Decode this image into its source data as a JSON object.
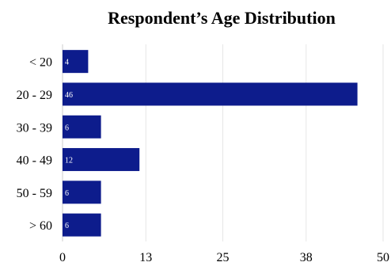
{
  "chart_data": {
    "type": "bar",
    "orientation": "horizontal",
    "title": "Respondent’s Age Distribution",
    "categories": [
      "< 20",
      "20 - 29",
      "30 - 39",
      "40 - 49",
      "50 - 59",
      "> 60"
    ],
    "values": [
      4,
      46,
      6,
      12,
      6,
      6
    ],
    "data_labels": [
      "4",
      "46",
      "6",
      "12",
      "6",
      "6"
    ],
    "x_ticks": [
      0,
      13,
      25,
      38,
      50
    ],
    "x_tick_labels": [
      "0",
      "13",
      "25",
      "38",
      "50"
    ],
    "xlim": [
      0,
      50
    ],
    "xlabel": "",
    "ylabel": "",
    "grid": true,
    "legend": "none",
    "bar_color": "#0d1c8c",
    "data_label_color": "#ffffff"
  }
}
